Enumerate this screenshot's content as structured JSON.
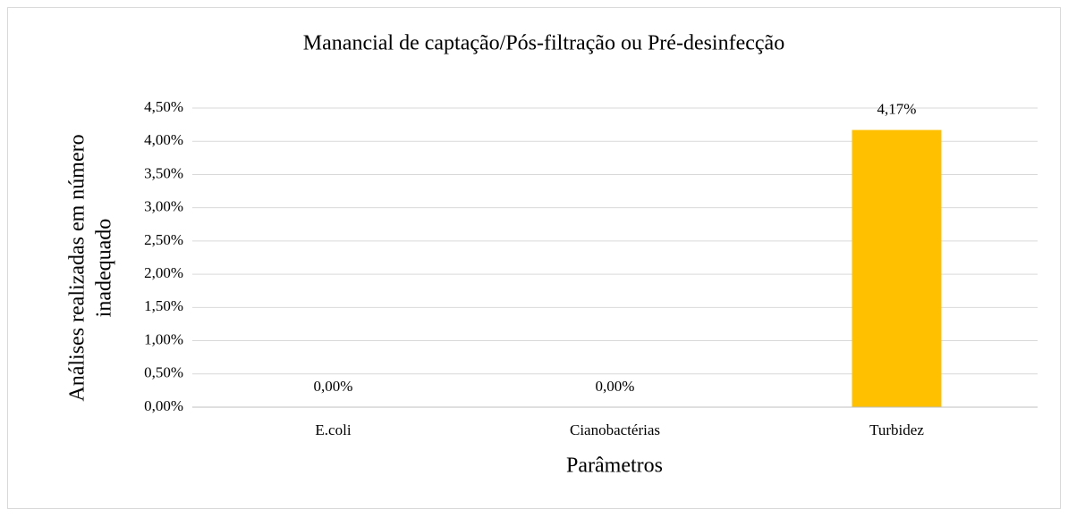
{
  "chart_data": {
    "type": "bar",
    "title": "Manancial de captação/Pós-filtração  ou Pré-desinfecção",
    "xlabel": "Parâmetros",
    "ylabel": [
      "Análises  realizadas em número",
      "inadequado"
    ],
    "categories": [
      "E.coli",
      "Cianobactérias",
      "Turbidez"
    ],
    "values": [
      0,
      0,
      4.17
    ],
    "value_labels": [
      "0,00%",
      "0,00%",
      "4,17%"
    ],
    "color": "#ffc000",
    "ylim": [
      0,
      4.5
    ],
    "yticks": [
      {
        "value": 0,
        "label": "0,00%"
      },
      {
        "value": 0.5,
        "label": "0,50%"
      },
      {
        "value": 1,
        "label": "1,00%"
      },
      {
        "value": 1.5,
        "label": "1,50%"
      },
      {
        "value": 2,
        "label": "2,00%"
      },
      {
        "value": 2.5,
        "label": "2,50%"
      },
      {
        "value": 3,
        "label": "3,00%"
      },
      {
        "value": 3.5,
        "label": "3,50%"
      },
      {
        "value": 4,
        "label": "4,00%"
      },
      {
        "value": 4.5,
        "label": "4,50%"
      }
    ],
    "grid": true
  }
}
